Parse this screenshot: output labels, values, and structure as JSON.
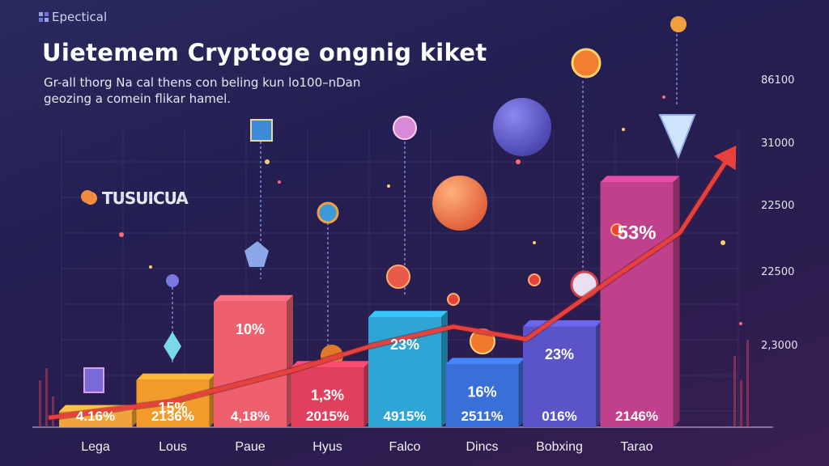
{
  "brand": "Epectical",
  "title": "Uietemem Cryptoge ongnig kiket",
  "subtitle": "Gr-all thorg Na cal thens con beling kun lo100–nDan geozing a comein flikar hamel.",
  "side_label": "TUSUICUA",
  "colors": {
    "background": "#262456",
    "trend_line": "#e8403a",
    "bars": [
      "#f2a23a",
      "#f29a2c",
      "#ef5f6e",
      "#e0405e",
      "#2fa5d6",
      "#3a6fd8",
      "#5a54c8",
      "#c0408c"
    ]
  },
  "icons": [
    "box-icon",
    "diamond-icon",
    "cube-icon",
    "globe-icon",
    "coin-icon",
    "planet-icon",
    "alarm-icon",
    "dollar-coin-icon",
    "gem-icon",
    "rocket-icon"
  ],
  "chart_data": {
    "type": "bar",
    "title": "Uietemem Cryptoge ongnig kiket",
    "categories": [
      "Lega",
      "Lous",
      "Paue",
      "Hyus",
      "Falco",
      "Dincs",
      "Bobxing",
      "Tarao"
    ],
    "values": [
      4.16,
      15,
      10,
      1.3,
      23,
      16,
      23,
      53
    ],
    "top_labels": [
      "",
      "15%",
      "10%",
      "1,3%",
      "23%",
      "16%",
      "23%",
      "53%"
    ],
    "bottom_labels": [
      "4.16%",
      "2136%",
      "4,18%",
      "2015%",
      "4915%",
      "2511%",
      "016%",
      "2146%"
    ],
    "bar_heights_value": [
      5,
      15,
      40,
      19,
      35,
      20,
      32,
      78
    ],
    "ytick_labels": [
      "86100",
      "31000",
      "22500",
      "22500",
      "2,3000"
    ],
    "trend_line": [
      3,
      8,
      18,
      26,
      32,
      28,
      48,
      62,
      88
    ],
    "ylim": [
      0,
      100
    ],
    "legend": "none",
    "grid": true
  }
}
